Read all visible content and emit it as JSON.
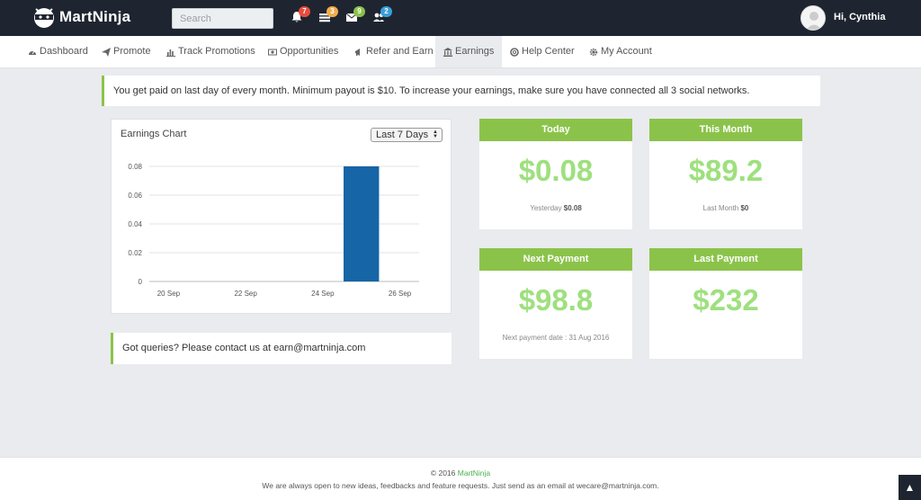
{
  "app": {
    "name": "MartNinja"
  },
  "search": {
    "placeholder": "Search"
  },
  "notifications": [
    {
      "icon": "bell-icon",
      "count": "7",
      "color": "#e74c3c"
    },
    {
      "icon": "tasks-icon",
      "count": "3",
      "color": "#f0ad4e"
    },
    {
      "icon": "envelope-icon",
      "count": "9",
      "color": "#8bc34a"
    },
    {
      "icon": "users-icon",
      "count": "2",
      "color": "#3a9fd8"
    }
  ],
  "user": {
    "greeting": "Hi, Cynthia"
  },
  "nav": {
    "items": [
      {
        "label": "Dashboard",
        "icon": "dashboard-icon"
      },
      {
        "label": "Promote",
        "icon": "paper-plane-icon"
      },
      {
        "label": "Track Promotions",
        "icon": "bar-chart-icon"
      },
      {
        "label": "Opportunities",
        "icon": "money-icon"
      },
      {
        "label": "Refer and Earn",
        "icon": "bullhorn-icon"
      },
      {
        "label": "Earnings",
        "icon": "bank-icon",
        "active": true
      },
      {
        "label": "Help Center",
        "icon": "life-ring-icon"
      },
      {
        "label": "My Account",
        "icon": "gear-icon"
      }
    ]
  },
  "info": {
    "text": "You get paid on last day of every month. Minimum payout is $10. To increase your earnings, make sure you have connected all 3 social networks."
  },
  "chart": {
    "title": "Earnings Chart",
    "range": "Last 7 Days"
  },
  "chart_data": {
    "type": "bar",
    "categories": [
      "20 Sep",
      "21 Sep",
      "22 Sep",
      "23 Sep",
      "24 Sep",
      "25 Sep",
      "26 Sep"
    ],
    "values": [
      0,
      0,
      0,
      0,
      0,
      0.08,
      0
    ],
    "x_tick_labels": [
      "20 Sep",
      "22 Sep",
      "24 Sep",
      "26 Sep"
    ],
    "y_ticks": [
      "0",
      "0.02",
      "0.04",
      "0.06",
      "0.08"
    ],
    "ylim": [
      0,
      0.08
    ],
    "grid": true,
    "bar_color": "#1565a7"
  },
  "query": {
    "text": "Got queries? Please contact us at earn@martninja.com"
  },
  "stats": {
    "today": {
      "title": "Today",
      "value": "$0.08",
      "sub_label": "Yesterday",
      "sub_value": "$0.08"
    },
    "this_month": {
      "title": "This Month",
      "value": "$89.2",
      "sub_label": "Last Month",
      "sub_value": "$0"
    },
    "next_payment": {
      "title": "Next Payment",
      "value": "$98.8",
      "sub_label": "Next payment date : 31 Aug 2016"
    },
    "last_payment": {
      "title": "Last Payment",
      "value": "$232"
    }
  },
  "footer": {
    "copyright": "© 2016",
    "brand": "MartNinja",
    "message": "We are always open to new ideas, feedbacks and feature requests. Just send as an email at wecare@martninja.com."
  },
  "scroll_top": {
    "icon": "chevron-up-icon",
    "glyph": "▲"
  }
}
